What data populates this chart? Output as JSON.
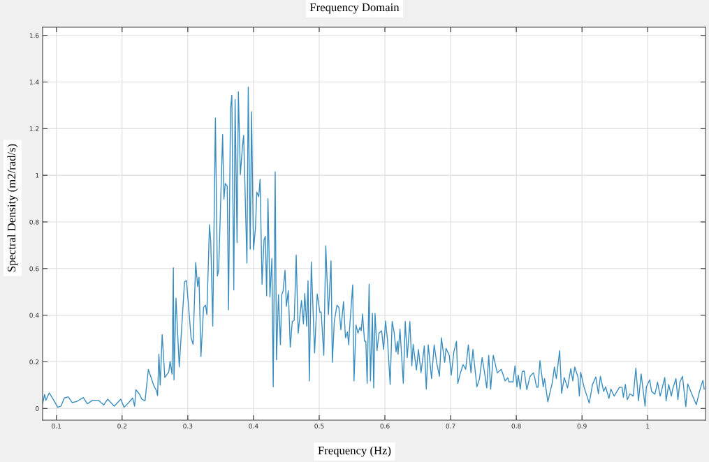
{
  "chart_data": {
    "type": "line",
    "title": "Frequency Domain",
    "xlabel": "Frequency (Hz)",
    "ylabel": "Spectral Density (m2/rad/s)",
    "xlim": [
      0.079,
      1.088
    ],
    "ylim": [
      -0.05,
      1.635
    ],
    "xticks": [
      0.1,
      0.2,
      0.3,
      0.4,
      0.5,
      0.6,
      0.7,
      0.8,
      0.9,
      1
    ],
    "yticks": [
      0,
      0.2,
      0.4,
      0.6,
      0.8,
      1,
      1.2,
      1.4,
      1.6
    ],
    "grid": true,
    "marker": "none",
    "line_style": "solid",
    "series": [
      {
        "color": "#3a8dbf",
        "x": [
          0.079,
          0.082,
          0.084,
          0.089,
          0.095,
          0.102,
          0.107,
          0.112,
          0.118,
          0.124,
          0.131,
          0.141,
          0.147,
          0.155,
          0.164,
          0.172,
          0.178,
          0.188,
          0.198,
          0.203,
          0.21,
          0.216,
          0.219,
          0.221,
          0.226,
          0.23,
          0.235,
          0.237,
          0.24,
          0.248,
          0.252,
          0.254,
          0.256,
          0.258,
          0.261,
          0.265,
          0.271,
          0.273,
          0.276,
          0.278,
          0.279,
          0.282,
          0.287,
          0.295,
          0.298,
          0.301,
          0.305,
          0.308,
          0.312,
          0.315,
          0.317,
          0.32,
          0.324,
          0.327,
          0.329,
          0.333,
          0.335,
          0.338,
          0.342,
          0.345,
          0.347,
          0.353,
          0.355,
          0.357,
          0.36,
          0.362,
          0.365,
          0.367,
          0.37,
          0.372,
          0.375,
          0.377,
          0.38,
          0.383,
          0.385,
          0.39,
          0.392,
          0.395,
          0.397,
          0.4,
          0.403,
          0.405,
          0.408,
          0.41,
          0.413,
          0.416,
          0.418,
          0.42,
          0.422,
          0.425,
          0.428,
          0.43,
          0.433,
          0.435,
          0.438,
          0.441,
          0.443,
          0.445,
          0.448,
          0.45,
          0.453,
          0.456,
          0.459,
          0.462,
          0.465,
          0.468,
          0.473,
          0.476,
          0.478,
          0.481,
          0.483,
          0.485,
          0.488,
          0.493,
          0.497,
          0.501,
          0.503,
          0.507,
          0.51,
          0.514,
          0.518,
          0.52,
          0.523,
          0.527,
          0.53,
          0.533,
          0.537,
          0.54,
          0.543,
          0.545,
          0.546,
          0.551,
          0.553,
          0.556,
          0.559,
          0.562,
          0.564,
          0.566,
          0.569,
          0.571,
          0.573,
          0.576,
          0.578,
          0.581,
          0.583,
          0.585,
          0.588,
          0.591,
          0.595,
          0.598,
          0.601,
          0.604,
          0.608,
          0.611,
          0.614,
          0.617,
          0.619,
          0.62,
          0.623,
          0.628,
          0.631,
          0.634,
          0.638,
          0.641,
          0.643,
          0.648,
          0.651,
          0.655,
          0.66,
          0.663,
          0.666,
          0.671,
          0.675,
          0.679,
          0.683,
          0.686,
          0.691,
          0.693,
          0.698,
          0.701,
          0.705,
          0.709,
          0.711,
          0.715,
          0.719,
          0.723,
          0.727,
          0.731,
          0.734,
          0.74,
          0.744,
          0.748,
          0.752,
          0.755,
          0.758,
          0.761,
          0.765,
          0.771,
          0.777,
          0.779,
          0.783,
          0.787,
          0.789,
          0.793,
          0.795,
          0.798,
          0.801,
          0.803,
          0.806,
          0.809,
          0.812,
          0.816,
          0.821,
          0.826,
          0.828,
          0.831,
          0.833,
          0.836,
          0.841,
          0.843,
          0.848,
          0.85,
          0.855,
          0.858,
          0.861,
          0.866,
          0.869,
          0.873,
          0.878,
          0.883,
          0.886,
          0.889,
          0.894,
          0.896,
          0.898,
          0.903,
          0.911,
          0.916,
          0.921,
          0.925,
          0.928,
          0.933,
          0.936,
          0.941,
          0.944,
          0.949,
          0.957,
          0.961,
          0.963,
          0.966,
          0.969,
          0.973,
          0.978,
          0.982,
          0.986,
          0.99,
          0.996,
          0.998,
          1.003,
          1.006,
          1.011,
          1.015,
          1.019,
          1.026,
          1.028,
          1.032,
          1.036,
          1.038,
          1.043,
          1.046,
          1.049,
          1.053,
          1.058,
          1.061,
          1.067,
          1.074,
          1.079,
          1.084,
          1.086
        ],
        "values": [
          0.02,
          0.06,
          0.035,
          0.067,
          0.04,
          0.005,
          0.01,
          0.045,
          0.05,
          0.025,
          0.03,
          0.047,
          0.02,
          0.035,
          0.035,
          0.015,
          0.04,
          0.01,
          0.04,
          0.005,
          0.025,
          0.045,
          0.01,
          0.08,
          0.063,
          0.04,
          0.033,
          0.09,
          0.167,
          0.1,
          0.078,
          0.055,
          0.233,
          0.1,
          0.317,
          0.133,
          0.156,
          0.202,
          0.147,
          0.603,
          0.123,
          0.473,
          0.178,
          0.543,
          0.548,
          0.443,
          0.303,
          0.275,
          0.626,
          0.523,
          0.563,
          0.223,
          0.433,
          0.443,
          0.403,
          0.788,
          0.713,
          0.353,
          1.245,
          0.568,
          0.595,
          1.175,
          0.898,
          0.965,
          0.953,
          0.423,
          1.283,
          1.343,
          0.508,
          1.325,
          0.711,
          1.358,
          1.003,
          1.118,
          1.171,
          0.623,
          1.378,
          0.683,
          1.273,
          0.681,
          0.773,
          0.928,
          0.908,
          0.983,
          0.533,
          0.723,
          0.738,
          0.483,
          0.9,
          0.478,
          0.643,
          0.093,
          1.015,
          0.208,
          0.488,
          0.273,
          0.488,
          0.503,
          0.593,
          0.438,
          0.505,
          0.263,
          0.373,
          0.378,
          0.658,
          0.323,
          0.463,
          0.363,
          0.493,
          0.353,
          0.548,
          0.118,
          0.628,
          0.238,
          0.491,
          0.413,
          0.413,
          0.228,
          0.698,
          0.403,
          0.633,
          0.198,
          0.373,
          0.443,
          0.433,
          0.338,
          0.458,
          0.303,
          0.328,
          0.273,
          0.333,
          0.53,
          0.118,
          0.358,
          0.323,
          0.348,
          0.333,
          0.405,
          0.288,
          0.288,
          0.108,
          0.533,
          0.118,
          0.408,
          0.088,
          0.408,
          0.248,
          0.323,
          0.333,
          0.253,
          0.375,
          0.293,
          0.103,
          0.373,
          0.328,
          0.243,
          0.288,
          0.233,
          0.34,
          0.108,
          0.373,
          0.218,
          0.373,
          0.183,
          0.275,
          0.165,
          0.253,
          0.153,
          0.268,
          0.083,
          0.273,
          0.128,
          0.273,
          0.193,
          0.138,
          0.303,
          0.198,
          0.258,
          0.228,
          0.143,
          0.243,
          0.288,
          0.108,
          0.153,
          0.188,
          0.168,
          0.273,
          0.153,
          0.253,
          0.093,
          0.128,
          0.218,
          0.148,
          0.088,
          0.228,
          0.083,
          0.228,
          0.153,
          0.168,
          0.153,
          0.118,
          0.131,
          0.113,
          0.115,
          0.113,
          0.183,
          0.093,
          0.143,
          0.083,
          0.158,
          0.161,
          0.081,
          0.138,
          0.153,
          0.133,
          0.091,
          0.091,
          0.205,
          0.093,
          0.128,
          0.028,
          0.053,
          0.113,
          0.178,
          0.128,
          0.248,
          0.065,
          0.133,
          0.088,
          0.171,
          0.118,
          0.178,
          0.133,
          0.053,
          0.155,
          0.093,
          0.023,
          0.103,
          0.135,
          0.063,
          0.138,
          0.073,
          0.093,
          0.043,
          0.083,
          0.053,
          0.091,
          0.091,
          0.048,
          0.103,
          0.038,
          0.063,
          0.053,
          0.173,
          0.033,
          0.148,
          0.01,
          0.093,
          0.123,
          0.073,
          0.061,
          0.113,
          0.053,
          0.133,
          0.033,
          0.103,
          0.053,
          0.083,
          0.128,
          0.038,
          0.113,
          0.138,
          0.008,
          0.105,
          0.063,
          0.016,
          0.075,
          0.121,
          0.083
        ]
      }
    ]
  }
}
